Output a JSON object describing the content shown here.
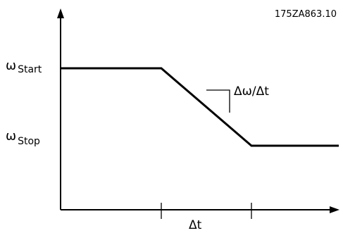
{
  "figure_id": "175ZA863.10",
  "labels": {
    "omega_symbol": "ω",
    "start_sub": "Start",
    "stop_sub": "Stop",
    "slope": "Δω/Δt",
    "delta_t": "Δt"
  }
}
